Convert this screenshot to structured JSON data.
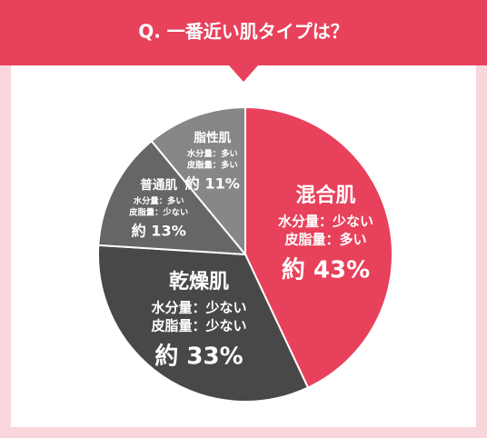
{
  "chart_data": {
    "type": "pie",
    "title": "Q. 一番近い肌タイプは？",
    "categories": [
      "混合肌",
      "乾燥肌",
      "普通肌",
      "脂性肌"
    ],
    "descriptions": [
      [
        "水分量：少ない",
        "皮脂量：多い"
      ],
      [
        "水分量：少ない",
        "皮脂量：少ない"
      ],
      [
        "水分量：多い",
        "皮脂量：少ない"
      ],
      [
        "水分量：多い",
        "皮脂量：多い"
      ]
    ],
    "values": [
      43,
      33,
      13,
      11
    ],
    "value_labels": [
      "約 43%",
      "約 33%",
      "約 13%",
      "約 11%"
    ],
    "colors": [
      "#e8415b",
      "#484848",
      "#666666",
      "#878787"
    ]
  }
}
